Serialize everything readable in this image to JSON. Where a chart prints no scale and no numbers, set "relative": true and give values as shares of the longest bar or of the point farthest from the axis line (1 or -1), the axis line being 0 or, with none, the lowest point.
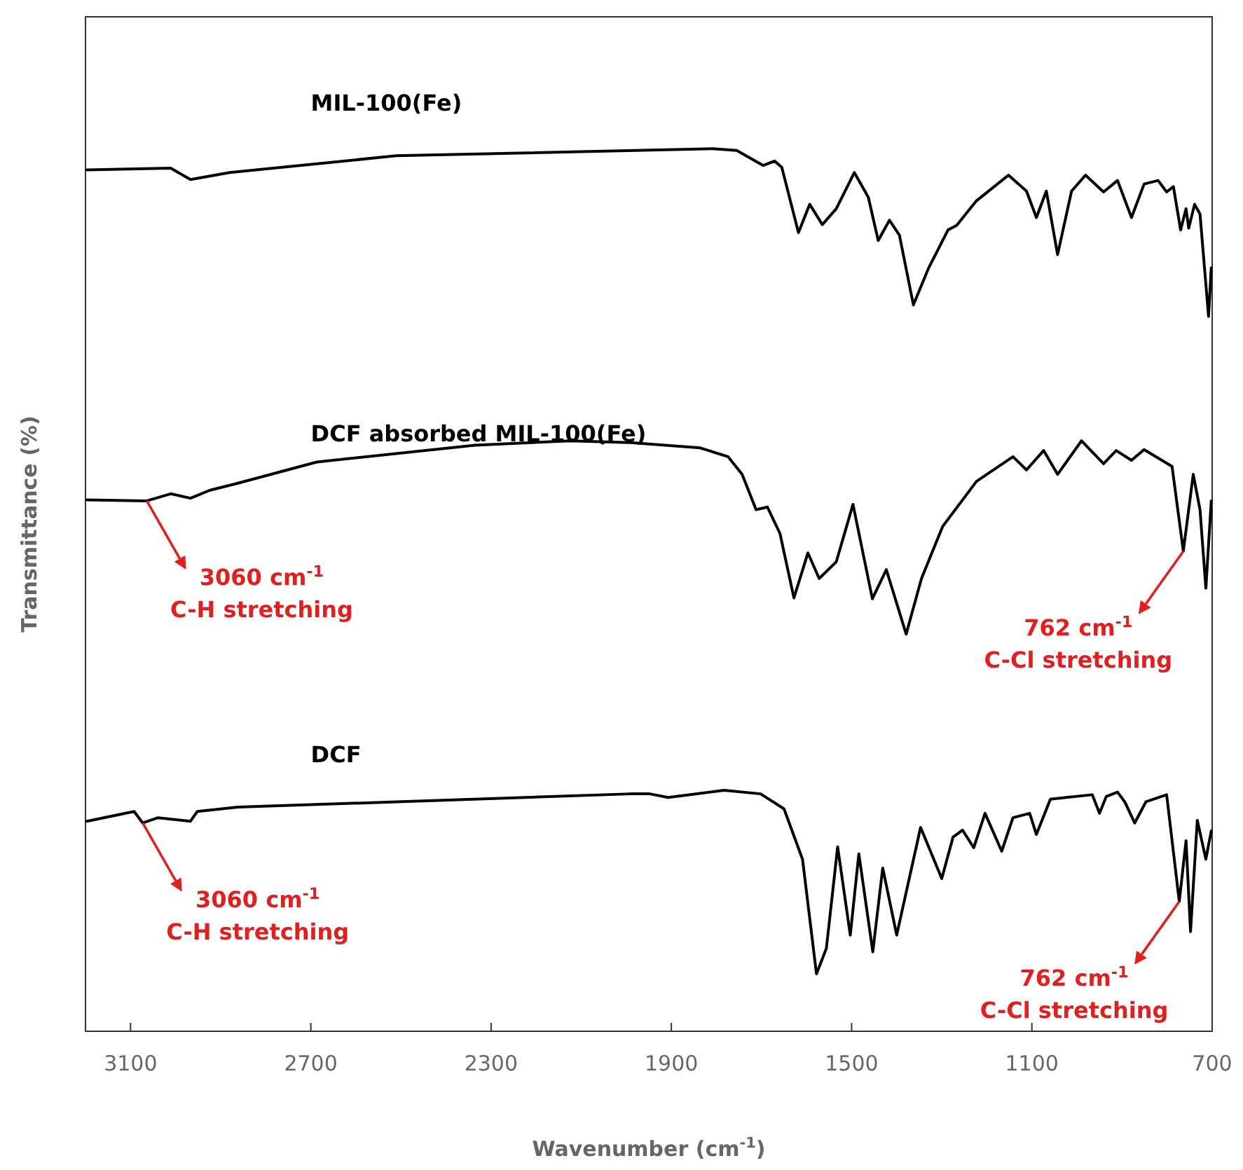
{
  "chart_data": {
    "type": "line",
    "relative": true,
    "xlabel": "Wavenumber (cm$^{-1}$)",
    "ylabel": "Transmittance (%)",
    "xlim": [
      3200,
      700
    ],
    "xticks": [
      3100,
      2700,
      2300,
      1900,
      1500,
      1100,
      700
    ],
    "grid": false,
    "legend": false,
    "marker": "none",
    "line_style": "solid",
    "series": [
      {
        "name": "MIL-100(Fe)",
        "color": "#000000",
        "x": [
          3197,
          3011,
          2967,
          2880,
          2510,
          1808,
          1755,
          1696,
          1671,
          1655,
          1618,
          1593,
          1565,
          1534,
          1494,
          1463,
          1441,
          1416,
          1394,
          1363,
          1329,
          1286,
          1267,
          1223,
          1152,
          1112,
          1090,
          1068,
          1043,
          1012,
          981,
          941,
          910,
          879,
          851,
          820,
          801,
          786,
          770,
          758,
          752,
          739,
          727,
          708,
          702
        ],
        "values": [
          0.976,
          0.978,
          0.965,
          0.973,
          0.992,
          1.0,
          0.998,
          0.981,
          0.986,
          0.979,
          0.905,
          0.937,
          0.914,
          0.932,
          0.973,
          0.945,
          0.896,
          0.919,
          0.902,
          0.823,
          0.865,
          0.908,
          0.913,
          0.941,
          0.97,
          0.952,
          0.922,
          0.952,
          0.88,
          0.952,
          0.97,
          0.951,
          0.964,
          0.922,
          0.96,
          0.964,
          0.951,
          0.957,
          0.908,
          0.932,
          0.91,
          0.937,
          0.926,
          0.81,
          0.865
        ]
      },
      {
        "name": "DCF absorbed MIL-100(Fe)",
        "color": "#000000",
        "x": [
          3197,
          3064,
          3011,
          2967,
          2924,
          2862,
          2687,
          2336,
          2125,
          1991,
          1836,
          1774,
          1743,
          1712,
          1687,
          1659,
          1628,
          1597,
          1572,
          1534,
          1497,
          1454,
          1423,
          1379,
          1345,
          1298,
          1223,
          1142,
          1112,
          1074,
          1043,
          990,
          941,
          913,
          879,
          851,
          789,
          764,
          742,
          727,
          714,
          702
        ],
        "values": [
          0.602,
          0.601,
          0.609,
          0.604,
          0.613,
          0.621,
          0.645,
          0.664,
          0.669,
          0.667,
          0.661,
          0.651,
          0.631,
          0.591,
          0.594,
          0.564,
          0.491,
          0.542,
          0.513,
          0.532,
          0.597,
          0.49,
          0.523,
          0.45,
          0.513,
          0.572,
          0.623,
          0.651,
          0.636,
          0.658,
          0.631,
          0.669,
          0.643,
          0.658,
          0.647,
          0.659,
          0.64,
          0.544,
          0.631,
          0.591,
          0.502,
          0.601
        ]
      },
      {
        "name": "DCF",
        "color": "#000000",
        "x": [
          3197,
          3092,
          3073,
          3039,
          2967,
          2952,
          2862,
          2510,
          1991,
          1948,
          1907,
          1783,
          1702,
          1650,
          1609,
          1578,
          1556,
          1531,
          1503,
          1484,
          1453,
          1431,
          1400,
          1347,
          1300,
          1275,
          1254,
          1229,
          1204,
          1167,
          1142,
          1105,
          1090,
          1059,
          966,
          950,
          935,
          910,
          894,
          872,
          847,
          801,
          773,
          758,
          748,
          733,
          714,
          702
        ],
        "values": [
          0.238,
          0.249,
          0.236,
          0.242,
          0.238,
          0.249,
          0.254,
          0.26,
          0.269,
          0.269,
          0.265,
          0.273,
          0.269,
          0.252,
          0.195,
          0.065,
          0.094,
          0.209,
          0.109,
          0.201,
          0.09,
          0.185,
          0.109,
          0.231,
          0.173,
          0.22,
          0.228,
          0.208,
          0.247,
          0.204,
          0.242,
          0.247,
          0.223,
          0.263,
          0.268,
          0.247,
          0.266,
          0.271,
          0.26,
          0.236,
          0.26,
          0.268,
          0.147,
          0.216,
          0.113,
          0.239,
          0.195,
          0.227
        ]
      }
    ],
    "annotations": [
      {
        "text": "3060 cm$^{-1}$\nC-H stretching",
        "x": 3064,
        "y": 0.601
      },
      {
        "text": "762 cm$^{-1}$\nC-Cl stretching",
        "x": 764,
        "y": 0.544
      },
      {
        "text": "3060 cm$^{-1}$\nC-H stretching",
        "x": 3073,
        "y": 0.236
      },
      {
        "text": "762 cm$^{-1}$\nC-Cl stretching",
        "x": 773,
        "y": 0.147
      }
    ]
  }
}
